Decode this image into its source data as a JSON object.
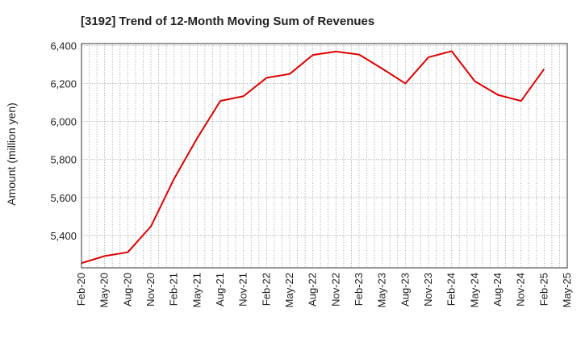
{
  "chart_data": {
    "type": "line",
    "title": "[3192]  Trend of 12-Month Moving Sum of Revenues",
    "xlabel": "",
    "ylabel": "Amount (million yen)",
    "ylim": [
      5230,
      6410
    ],
    "yticks": [
      5400,
      5600,
      5800,
      6000,
      6200,
      6400
    ],
    "ytick_labels": [
      "5,400",
      "5,600",
      "5,800",
      "6,000",
      "6,200",
      "6,400"
    ],
    "xtick_labels": [
      "Feb-20",
      "May-20",
      "Aug-20",
      "Nov-20",
      "Feb-21",
      "May-21",
      "Aug-21",
      "Nov-21",
      "Feb-22",
      "May-22",
      "Aug-22",
      "Nov-22",
      "Feb-23",
      "May-23",
      "Aug-23",
      "Nov-23",
      "Feb-24",
      "May-24",
      "Aug-24",
      "Nov-24",
      "Feb-25",
      "May-25"
    ],
    "grid": true,
    "line_color": "#e00000",
    "series": [
      {
        "name": "",
        "values": [
          5255,
          5292,
          5312,
          5448,
          5698,
          5912,
          6108,
          6133,
          6230,
          6250,
          6350,
          6368,
          6352,
          6278,
          6200,
          6338,
          6370,
          6212,
          6140,
          6108,
          6276
        ]
      }
    ]
  }
}
